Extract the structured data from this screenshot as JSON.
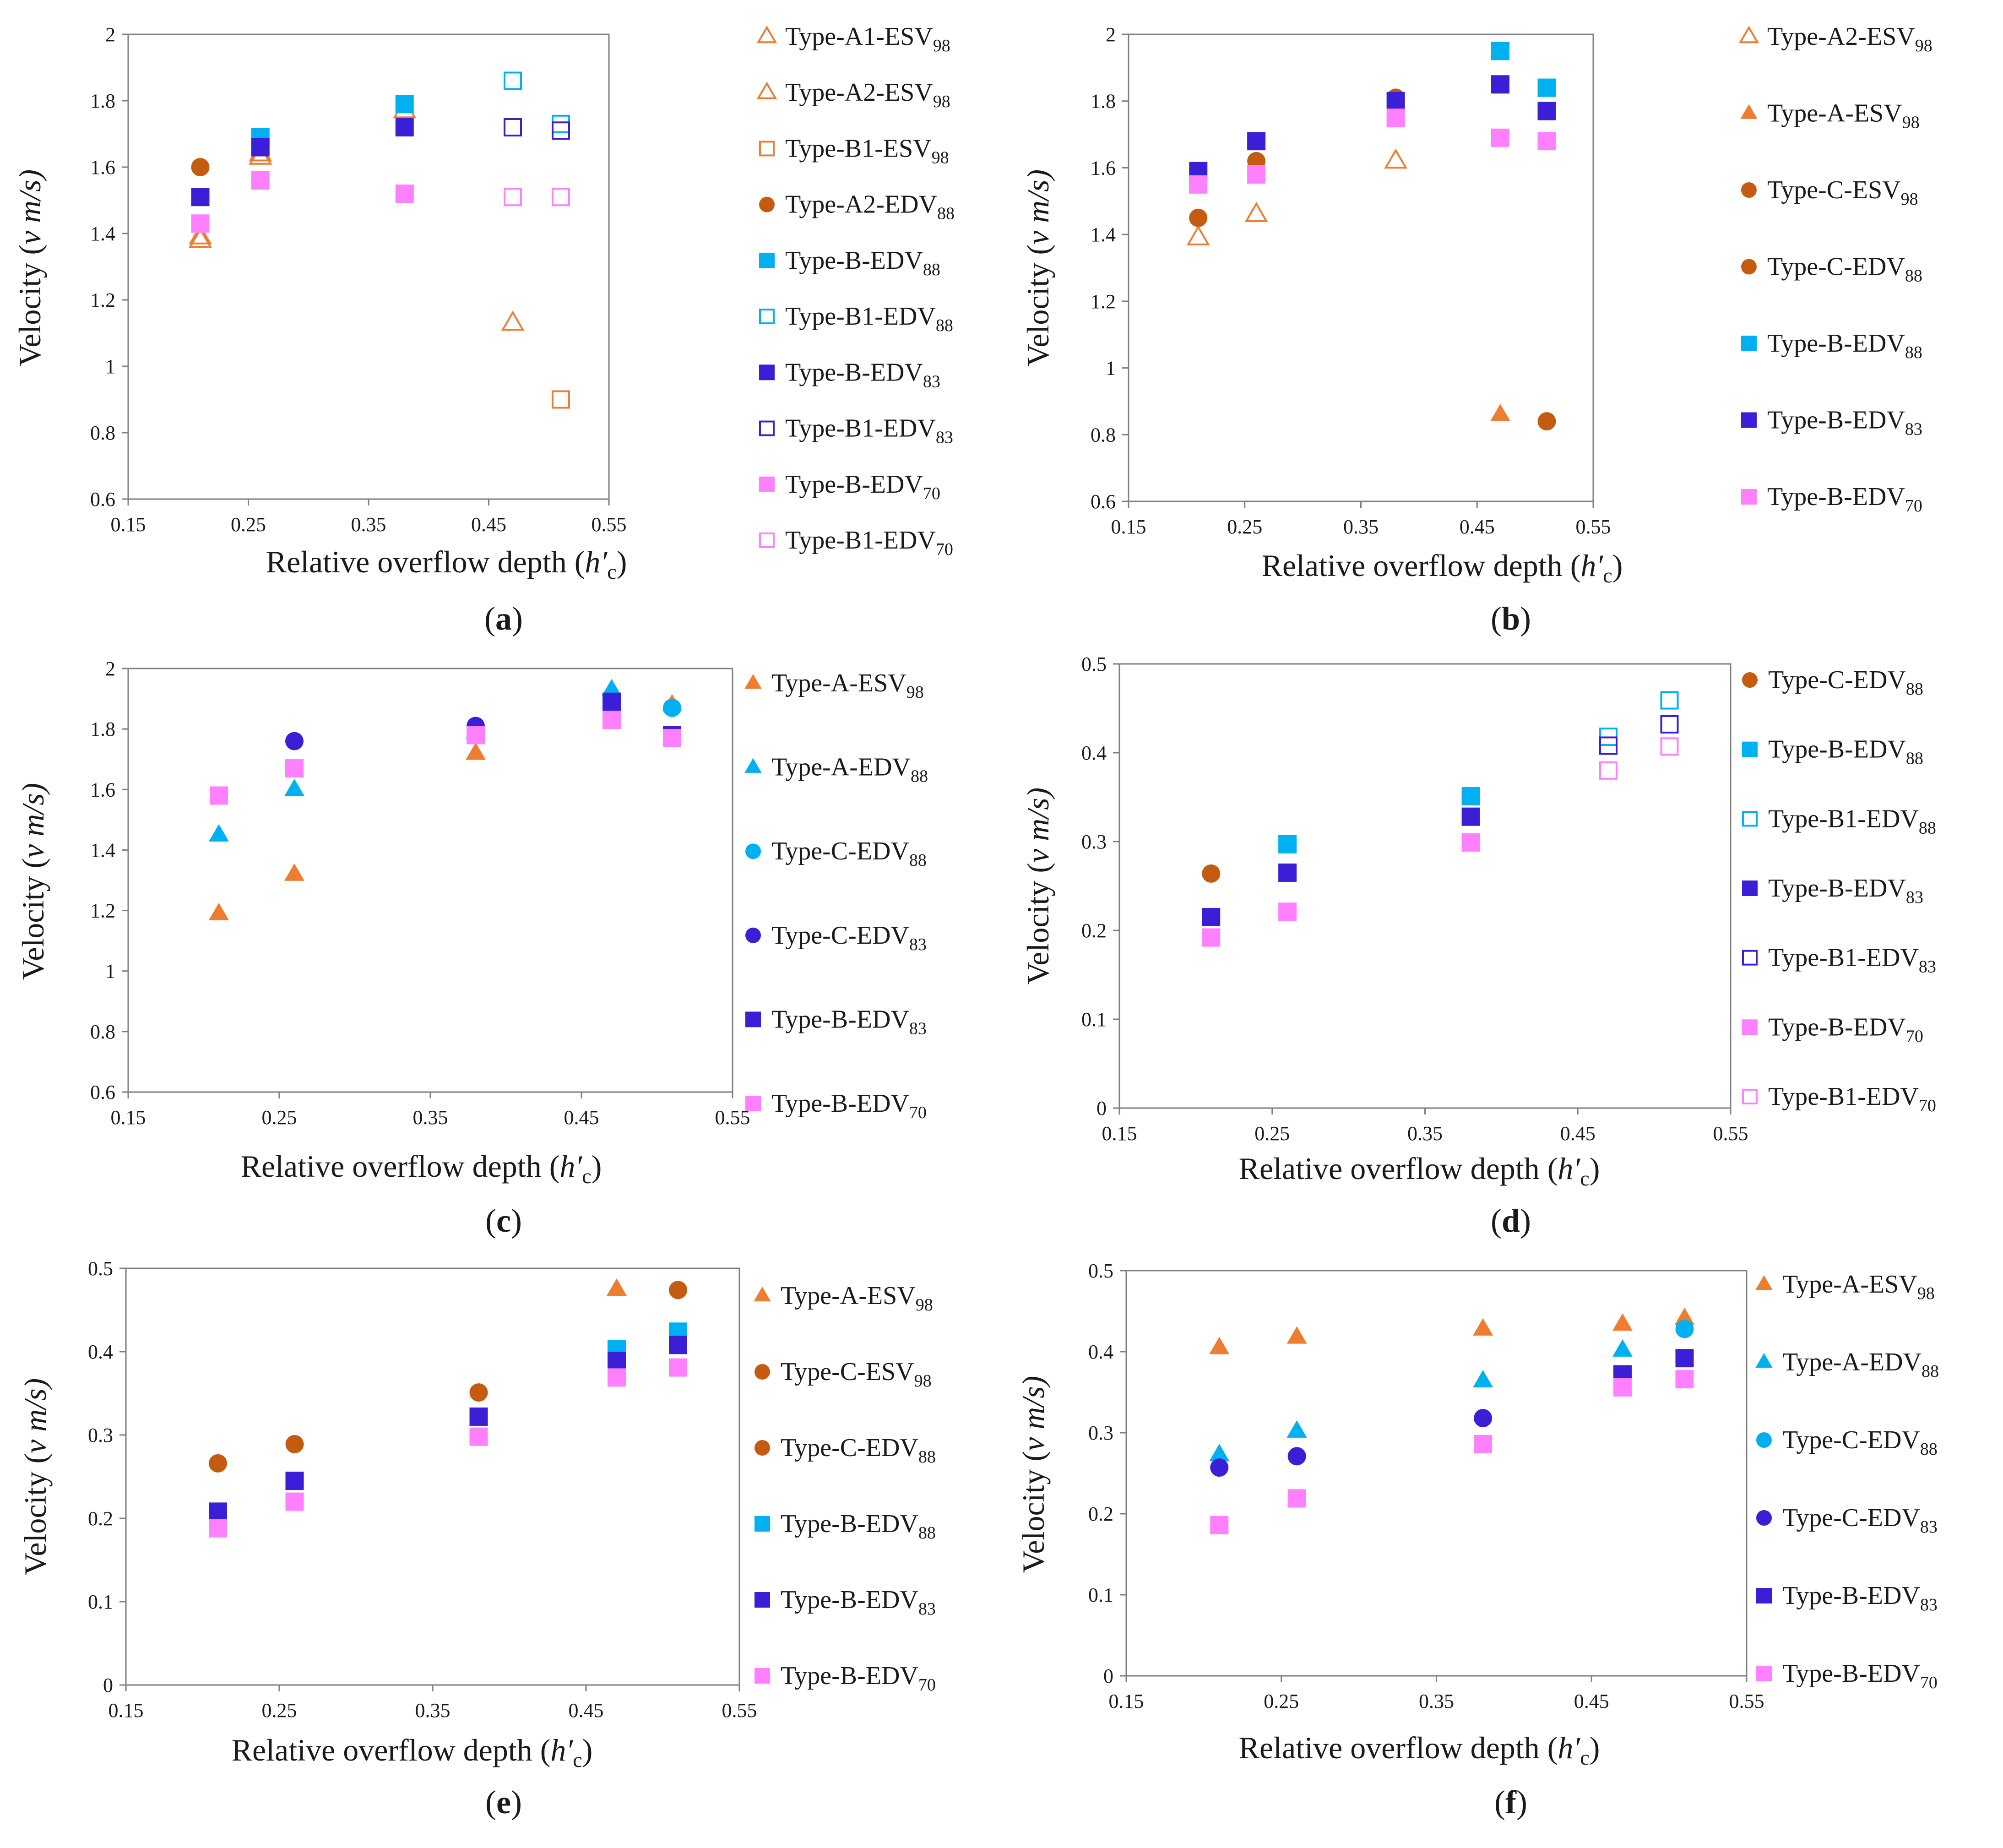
{
  "figure": {
    "captions": [
      "(a)",
      "(b)",
      "(c)",
      "(d)",
      "(e)",
      "(f)"
    ]
  },
  "colors": {
    "orange": "#ED7D31",
    "brown": "#C55A11",
    "cyan": "#00B0F0",
    "blue": "#3A1FD6",
    "pink": "#FF80FF"
  },
  "chart_data": [
    {
      "panel": "a",
      "type": "scatter",
      "xlabel": "Relative overflow depth (h′c)",
      "ylabel": "Velocity (v m/s)",
      "xlim": [
        0.15,
        0.55
      ],
      "ylim": [
        0.6,
        2.0
      ],
      "xticks": [
        "0.15",
        "0.25",
        "0.35",
        "0.45",
        "0.55"
      ],
      "yticks": [
        "0.6",
        "0.8",
        "1",
        "1.2",
        "1.4",
        "1.6",
        "1.8",
        "2"
      ],
      "series": [
        {
          "name": "Type-A1-ESV98",
          "base": "Type-A1-ESV",
          "sub": "98",
          "marker": "triangle",
          "fill": "none",
          "color": "orange",
          "x": [
            0.21,
            0.26,
            0.38
          ],
          "y": [
            1.39,
            1.64,
            1.77
          ]
        },
        {
          "name": "Type-A2-ESV98",
          "base": "Type-A2-ESV",
          "sub": "98",
          "marker": "triangle",
          "fill": "none",
          "color": "orange",
          "x": [
            0.21,
            0.26,
            0.47
          ],
          "y": [
            1.38,
            1.63,
            1.13
          ]
        },
        {
          "name": "Type-B1-ESV98",
          "base": "Type-B1-ESV",
          "sub": "98",
          "marker": "square",
          "fill": "none",
          "color": "orange",
          "x": [
            0.51
          ],
          "y": [
            0.9
          ]
        },
        {
          "name": "Type-A2-EDV88",
          "base": "Type-A2-EDV",
          "sub": "88",
          "marker": "circle",
          "fill": "solid",
          "color": "brown",
          "x": [
            0.21
          ],
          "y": [
            1.6
          ]
        },
        {
          "name": "Type-B-EDV88",
          "base": "Type-B-EDV",
          "sub": "88",
          "marker": "square",
          "fill": "solid",
          "color": "cyan",
          "x": [
            0.26,
            0.38
          ],
          "y": [
            1.69,
            1.79
          ]
        },
        {
          "name": "Type-B1-EDV88",
          "base": "Type-B1-EDV",
          "sub": "88",
          "marker": "square",
          "fill": "none",
          "color": "cyan",
          "x": [
            0.47,
            0.51
          ],
          "y": [
            1.86,
            1.73
          ]
        },
        {
          "name": "Type-B-EDV83",
          "base": "Type-B-EDV",
          "sub": "83",
          "marker": "square",
          "fill": "solid",
          "color": "blue",
          "x": [
            0.21,
            0.26,
            0.38
          ],
          "y": [
            1.51,
            1.66,
            1.72
          ]
        },
        {
          "name": "Type-B1-EDV83",
          "base": "Type-B1-EDV",
          "sub": "83",
          "marker": "square",
          "fill": "none",
          "color": "blue",
          "x": [
            0.47,
            0.51
          ],
          "y": [
            1.72,
            1.71
          ]
        },
        {
          "name": "Type-B-EDV70",
          "base": "Type-B-EDV",
          "sub": "70",
          "marker": "square",
          "fill": "solid",
          "color": "pink",
          "x": [
            0.21,
            0.26,
            0.38
          ],
          "y": [
            1.43,
            1.56,
            1.52
          ]
        },
        {
          "name": "Type-B1-EDV70",
          "base": "Type-B1-EDV",
          "sub": "70",
          "marker": "square",
          "fill": "none",
          "color": "pink",
          "x": [
            0.47,
            0.51
          ],
          "y": [
            1.51,
            1.51
          ]
        }
      ]
    },
    {
      "panel": "b",
      "type": "scatter",
      "xlabel": "Relative overflow depth (h′c)",
      "ylabel": "Velocity (v m/s)",
      "xlim": [
        0.15,
        0.55
      ],
      "ylim": [
        0.6,
        2.0
      ],
      "xticks": [
        "0.15",
        "0.25",
        "0.35",
        "0.45",
        "0.55"
      ],
      "yticks": [
        "0.6",
        "0.8",
        "1",
        "1.2",
        "1.4",
        "1.6",
        "1.8",
        "2"
      ],
      "series": [
        {
          "name": "Type-A2-ESV98",
          "base": "Type-A2-ESV",
          "sub": "98",
          "marker": "triangle",
          "fill": "none",
          "color": "orange",
          "x": [
            0.21,
            0.26,
            0.38
          ],
          "y": [
            1.39,
            1.46,
            1.62
          ]
        },
        {
          "name": "Type-A-ESV98",
          "base": "Type-A-ESV",
          "sub": "98",
          "marker": "triangle",
          "fill": "solid",
          "color": "orange",
          "x": [
            0.47
          ],
          "y": [
            0.86
          ]
        },
        {
          "name": "Type-C-ESV98",
          "base": "Type-C-ESV",
          "sub": "98",
          "marker": "circle",
          "fill": "solid",
          "color": "brown",
          "x": [
            0.51
          ],
          "y": [
            0.84
          ]
        },
        {
          "name": "Type-C-EDV88",
          "base": "Type-C-EDV",
          "sub": "88",
          "marker": "circle",
          "fill": "solid",
          "color": "brown",
          "x": [
            0.21,
            0.26,
            0.38
          ],
          "y": [
            1.45,
            1.62,
            1.81
          ]
        },
        {
          "name": "Type-B-EDV88",
          "base": "Type-B-EDV",
          "sub": "88",
          "marker": "square",
          "fill": "solid",
          "color": "cyan",
          "x": [
            0.47,
            0.51
          ],
          "y": [
            1.95,
            1.84
          ]
        },
        {
          "name": "Type-B-EDV83",
          "base": "Type-B-EDV",
          "sub": "83",
          "marker": "square",
          "fill": "solid",
          "color": "blue",
          "x": [
            0.21,
            0.26,
            0.38,
            0.47,
            0.51
          ],
          "y": [
            1.59,
            1.68,
            1.8,
            1.85,
            1.77
          ]
        },
        {
          "name": "Type-B-EDV70",
          "base": "Type-B-EDV",
          "sub": "70",
          "marker": "square",
          "fill": "solid",
          "color": "pink",
          "x": [
            0.21,
            0.26,
            0.38,
            0.47,
            0.51
          ],
          "y": [
            1.55,
            1.58,
            1.75,
            1.69,
            1.68
          ]
        }
      ]
    },
    {
      "panel": "c",
      "type": "scatter",
      "xlabel": "Relative overflow depth (h′c)",
      "ylabel": "Velocity (v m/s)",
      "xlim": [
        0.15,
        0.55
      ],
      "ylim": [
        0.6,
        2.0
      ],
      "xticks": [
        "0.15",
        "0.25",
        "0.35",
        "0.45",
        "0.55"
      ],
      "yticks": [
        "0.6",
        "0.8",
        "1",
        "1.2",
        "1.4",
        "1.6",
        "1.8",
        "2"
      ],
      "series": [
        {
          "name": "Type-A-ESV98",
          "base": "Type-A-ESV",
          "sub": "98",
          "marker": "triangle",
          "fill": "solid",
          "color": "orange",
          "x": [
            0.21,
            0.26,
            0.38,
            0.51
          ],
          "y": [
            1.19,
            1.32,
            1.72,
            1.88
          ]
        },
        {
          "name": "Type-A-EDV88",
          "base": "Type-A-EDV",
          "sub": "88",
          "marker": "triangle",
          "fill": "solid",
          "color": "cyan",
          "x": [
            0.21,
            0.26,
            0.38,
            0.47
          ],
          "y": [
            1.45,
            1.6,
            1.79,
            1.93
          ]
        },
        {
          "name": "Type-C-EDV88",
          "base": "Type-C-EDV",
          "sub": "88",
          "marker": "circle",
          "fill": "solid",
          "color": "cyan",
          "x": [
            0.51
          ],
          "y": [
            1.87
          ]
        },
        {
          "name": "Type-C-EDV83",
          "base": "Type-C-EDV",
          "sub": "83",
          "marker": "circle",
          "fill": "solid",
          "color": "blue",
          "x": [
            0.21,
            0.26,
            0.38
          ],
          "y": [
            1.58,
            1.76,
            1.81
          ]
        },
        {
          "name": "Type-B-EDV83",
          "base": "Type-B-EDV",
          "sub": "83",
          "marker": "square",
          "fill": "solid",
          "color": "blue",
          "x": [
            0.47,
            0.51
          ],
          "y": [
            1.89,
            1.78
          ]
        },
        {
          "name": "Type-B-EDV70",
          "base": "Type-B-EDV",
          "sub": "70",
          "marker": "square",
          "fill": "solid",
          "color": "pink",
          "x": [
            0.21,
            0.26,
            0.38,
            0.47,
            0.51
          ],
          "y": [
            1.58,
            1.67,
            1.78,
            1.83,
            1.77
          ]
        }
      ]
    },
    {
      "panel": "d",
      "type": "scatter",
      "xlabel": "Relative overflow depth (h′c)",
      "ylabel": "Velocity (v m/s)",
      "xlim": [
        0.15,
        0.55
      ],
      "ylim": [
        0.0,
        0.5
      ],
      "xticks": [
        "0.15",
        "0.25",
        "0.35",
        "0.45",
        "0.55"
      ],
      "yticks": [
        "0",
        "0.1",
        "0.2",
        "0.3",
        "0.4",
        "0.5"
      ],
      "series": [
        {
          "name": "Type-C-EDV88",
          "base": "Type-C-EDV",
          "sub": "88",
          "marker": "circle",
          "fill": "solid",
          "color": "brown",
          "x": [
            0.21
          ],
          "y": [
            0.264
          ]
        },
        {
          "name": "Type-B-EDV88",
          "base": "Type-B-EDV",
          "sub": "88",
          "marker": "square",
          "fill": "solid",
          "color": "cyan",
          "x": [
            0.26,
            0.38
          ],
          "y": [
            0.297,
            0.351
          ]
        },
        {
          "name": "Type-B1-EDV88",
          "base": "Type-B1-EDV",
          "sub": "88",
          "marker": "square",
          "fill": "none",
          "color": "cyan",
          "x": [
            0.47,
            0.51
          ],
          "y": [
            0.418,
            0.459
          ]
        },
        {
          "name": "Type-B-EDV83",
          "base": "Type-B-EDV",
          "sub": "83",
          "marker": "square",
          "fill": "solid",
          "color": "blue",
          "x": [
            0.21,
            0.26,
            0.38
          ],
          "y": [
            0.215,
            0.265,
            0.328
          ]
        },
        {
          "name": "Type-B1-EDV83",
          "base": "Type-B1-EDV",
          "sub": "83",
          "marker": "square",
          "fill": "none",
          "color": "blue",
          "x": [
            0.47,
            0.51
          ],
          "y": [
            0.408,
            0.432
          ]
        },
        {
          "name": "Type-B-EDV70",
          "base": "Type-B-EDV",
          "sub": "70",
          "marker": "square",
          "fill": "solid",
          "color": "pink",
          "x": [
            0.21,
            0.26,
            0.38
          ],
          "y": [
            0.192,
            0.221,
            0.299
          ]
        },
        {
          "name": "Type-B1-EDV70",
          "base": "Type-B1-EDV",
          "sub": "70",
          "marker": "square",
          "fill": "none",
          "color": "pink",
          "x": [
            0.47,
            0.51
          ],
          "y": [
            0.38,
            0.407
          ]
        }
      ]
    },
    {
      "panel": "e",
      "type": "scatter",
      "xlabel": "Relative overflow depth (h′c)",
      "ylabel": "Velocity (v m/s)",
      "xlim": [
        0.15,
        0.55
      ],
      "ylim": [
        0.0,
        0.5
      ],
      "xticks": [
        "0.15",
        "0.25",
        "0.35",
        "0.45",
        "0.55"
      ],
      "yticks": [
        "0",
        "0.1",
        "0.2",
        "0.3",
        "0.4",
        "0.5"
      ],
      "series": [
        {
          "name": "Type-A-ESV98",
          "base": "Type-A-ESV",
          "sub": "98",
          "marker": "triangle",
          "fill": "solid",
          "color": "orange",
          "x": [
            0.47
          ],
          "y": [
            0.475
          ]
        },
        {
          "name": "Type-C-ESV98",
          "base": "Type-C-ESV",
          "sub": "98",
          "marker": "circle",
          "fill": "solid",
          "color": "brown",
          "x": [
            0.51
          ],
          "y": [
            0.474
          ]
        },
        {
          "name": "Type-C-EDV88",
          "base": "Type-C-EDV",
          "sub": "88",
          "marker": "circle",
          "fill": "solid",
          "color": "brown",
          "x": [
            0.21,
            0.26,
            0.38
          ],
          "y": [
            0.266,
            0.289,
            0.351
          ]
        },
        {
          "name": "Type-B-EDV88",
          "base": "Type-B-EDV",
          "sub": "88",
          "marker": "square",
          "fill": "solid",
          "color": "cyan",
          "x": [
            0.47,
            0.51
          ],
          "y": [
            0.403,
            0.424
          ]
        },
        {
          "name": "Type-B-EDV83",
          "base": "Type-B-EDV",
          "sub": "83",
          "marker": "square",
          "fill": "solid",
          "color": "blue",
          "x": [
            0.21,
            0.26,
            0.38,
            0.47,
            0.51
          ],
          "y": [
            0.208,
            0.245,
            0.322,
            0.389,
            0.408
          ]
        },
        {
          "name": "Type-B-EDV70",
          "base": "Type-B-EDV",
          "sub": "70",
          "marker": "square",
          "fill": "solid",
          "color": "pink",
          "x": [
            0.21,
            0.26,
            0.38,
            0.47,
            0.51
          ],
          "y": [
            0.188,
            0.22,
            0.298,
            0.369,
            0.381
          ]
        }
      ]
    },
    {
      "panel": "f",
      "type": "scatter",
      "xlabel": "Relative overflow depth (h′c)",
      "ylabel": "Velocity (v m/s)",
      "xlim": [
        0.15,
        0.55
      ],
      "ylim": [
        0.0,
        0.5
      ],
      "xticks": [
        "0.15",
        "0.25",
        "0.35",
        "0.45",
        "0.55"
      ],
      "yticks": [
        "0",
        "0.1",
        "0.2",
        "0.3",
        "0.4",
        "0.5"
      ],
      "series": [
        {
          "name": "Type-A-ESV98",
          "base": "Type-A-ESV",
          "sub": "98",
          "marker": "triangle",
          "fill": "solid",
          "color": "orange",
          "x": [
            0.21,
            0.26,
            0.38,
            0.47,
            0.51
          ],
          "y": [
            0.405,
            0.418,
            0.428,
            0.434,
            0.441
          ]
        },
        {
          "name": "Type-A-EDV88",
          "base": "Type-A-EDV",
          "sub": "88",
          "marker": "triangle",
          "fill": "solid",
          "color": "cyan",
          "x": [
            0.21,
            0.26,
            0.38,
            0.47
          ],
          "y": [
            0.273,
            0.302,
            0.364,
            0.402
          ]
        },
        {
          "name": "Type-C-EDV88",
          "base": "Type-C-EDV",
          "sub": "88",
          "marker": "circle",
          "fill": "solid",
          "color": "cyan",
          "x": [
            0.51
          ],
          "y": [
            0.428
          ]
        },
        {
          "name": "Type-C-EDV83",
          "base": "Type-C-EDV",
          "sub": "83",
          "marker": "circle",
          "fill": "solid",
          "color": "blue",
          "x": [
            0.21,
            0.26,
            0.38
          ],
          "y": [
            0.257,
            0.271,
            0.318
          ]
        },
        {
          "name": "Type-B-EDV83",
          "base": "Type-B-EDV",
          "sub": "83",
          "marker": "square",
          "fill": "solid",
          "color": "blue",
          "x": [
            0.47,
            0.51
          ],
          "y": [
            0.372,
            0.392
          ]
        },
        {
          "name": "Type-B-EDV70",
          "base": "Type-B-EDV",
          "sub": "70",
          "marker": "square",
          "fill": "solid",
          "color": "pink",
          "x": [
            0.21,
            0.26,
            0.38,
            0.47,
            0.51
          ],
          "y": [
            0.186,
            0.219,
            0.286,
            0.356,
            0.366
          ]
        }
      ]
    }
  ]
}
